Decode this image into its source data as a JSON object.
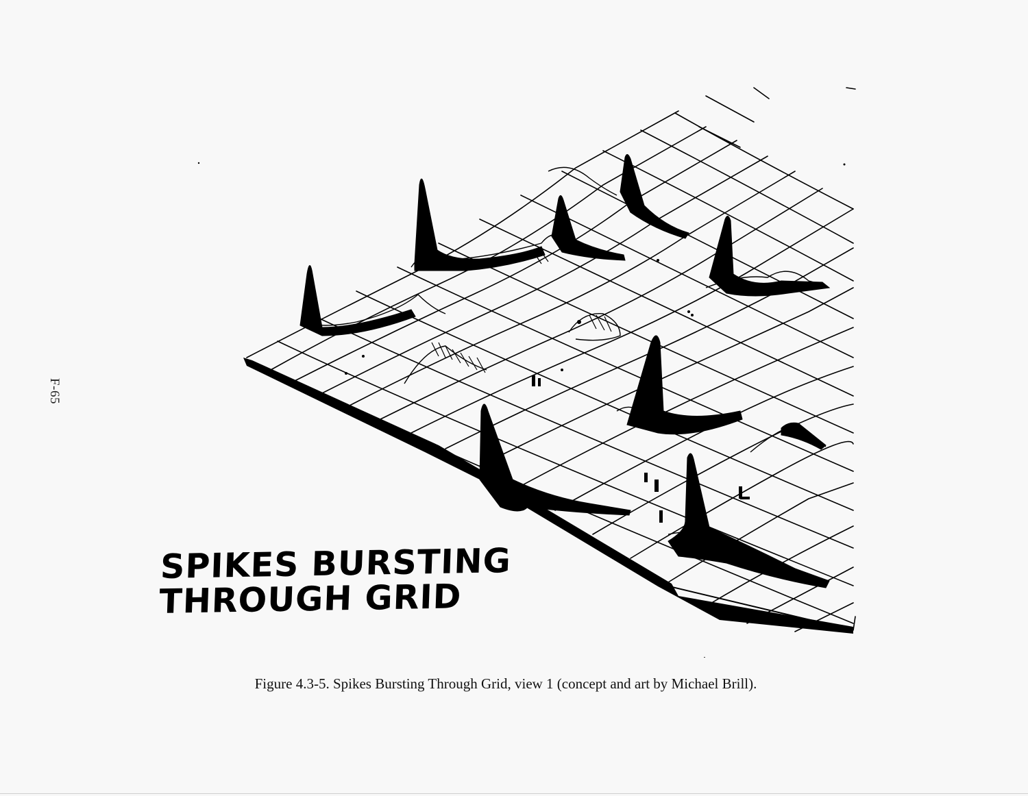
{
  "page": {
    "page_number": "F-65",
    "caption": "Figure 4.3-5.  Spikes Bursting Through Grid, view 1 (concept and art by Michael Brill)."
  },
  "illustration": {
    "title_lines": [
      "SPIKES BURSTING",
      "THROUGH GRID"
    ],
    "ink_color": "#000000",
    "paper_color": "#f8f8f8"
  }
}
